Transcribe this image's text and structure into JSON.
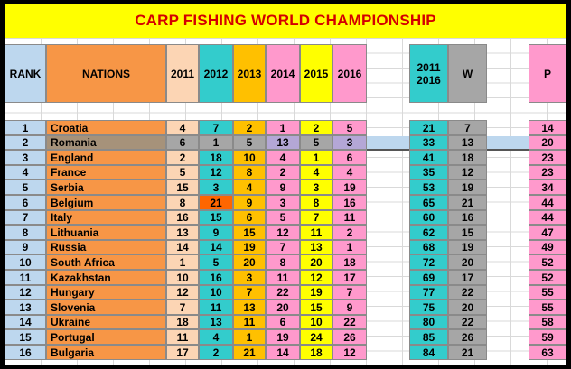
{
  "title": "CARP FISHING WORLD CHAMPIONSHIP",
  "headers": {
    "rank": "RANK",
    "nations": "NATIONS",
    "years": [
      "2011",
      "2012",
      "2013",
      "2014",
      "2015",
      "2016"
    ],
    "total_line1": "2011",
    "total_line2": "2016",
    "w": "W",
    "p": "P"
  },
  "colors": {
    "title_bg": "#ffff00",
    "title_text": "#d40000",
    "rank": "#bdd7ee",
    "nations": "#f79646",
    "y2011": "#fcd5b4",
    "y2012": "#33cccc",
    "y2013": "#ffc000",
    "y2014": "#ff99cc",
    "y2015": "#ffff00",
    "y2016": "#ff99cc",
    "total": "#33cccc",
    "w": "#a6a6a6",
    "p": "#ff99cc",
    "highlight_row": "#a6a6a6",
    "highlight_cell": "#ff6600",
    "bar": "#bdd7ee"
  },
  "rows": [
    {
      "rank": "1",
      "nation": "Croatia",
      "y": [
        "4",
        "7",
        "2",
        "1",
        "2",
        "5"
      ],
      "total": "21",
      "w": "7",
      "p": "14"
    },
    {
      "rank": "2",
      "nation": "Romania",
      "y": [
        "6",
        "1",
        "5",
        "13",
        "5",
        "3"
      ],
      "total": "33",
      "w": "13",
      "p": "20"
    },
    {
      "rank": "3",
      "nation": "England",
      "y": [
        "2",
        "18",
        "10",
        "4",
        "1",
        "6"
      ],
      "total": "41",
      "w": "18",
      "p": "23"
    },
    {
      "rank": "4",
      "nation": "France",
      "y": [
        "5",
        "12",
        "8",
        "2",
        "4",
        "4"
      ],
      "total": "35",
      "w": "12",
      "p": "23"
    },
    {
      "rank": "5",
      "nation": "Serbia",
      "y": [
        "15",
        "3",
        "4",
        "9",
        "3",
        "19"
      ],
      "total": "53",
      "w": "19",
      "p": "34"
    },
    {
      "rank": "6",
      "nation": "Belgium",
      "y": [
        "8",
        "21",
        "9",
        "3",
        "8",
        "16"
      ],
      "total": "65",
      "w": "21",
      "p": "44"
    },
    {
      "rank": "7",
      "nation": "Italy",
      "y": [
        "16",
        "15",
        "6",
        "5",
        "7",
        "11"
      ],
      "total": "60",
      "w": "16",
      "p": "44"
    },
    {
      "rank": "8",
      "nation": "Lithuania",
      "y": [
        "13",
        "9",
        "15",
        "12",
        "11",
        "2"
      ],
      "total": "62",
      "w": "15",
      "p": "47"
    },
    {
      "rank": "9",
      "nation": "Russia",
      "y": [
        "14",
        "14",
        "19",
        "7",
        "13",
        "1"
      ],
      "total": "68",
      "w": "19",
      "p": "49"
    },
    {
      "rank": "10",
      "nation": "South Africa",
      "y": [
        "1",
        "5",
        "20",
        "8",
        "20",
        "18"
      ],
      "total": "72",
      "w": "20",
      "p": "52"
    },
    {
      "rank": "11",
      "nation": "Kazakhstan",
      "y": [
        "10",
        "16",
        "3",
        "11",
        "12",
        "17"
      ],
      "total": "69",
      "w": "17",
      "p": "52"
    },
    {
      "rank": "12",
      "nation": "Hungary",
      "y": [
        "12",
        "10",
        "7",
        "22",
        "19",
        "7"
      ],
      "total": "77",
      "w": "22",
      "p": "55"
    },
    {
      "rank": "13",
      "nation": "Slovenia",
      "y": [
        "7",
        "11",
        "13",
        "20",
        "15",
        "9"
      ],
      "total": "75",
      "w": "20",
      "p": "55"
    },
    {
      "rank": "14",
      "nation": "Ukraine",
      "y": [
        "18",
        "13",
        "11",
        "6",
        "10",
        "22"
      ],
      "total": "80",
      "w": "22",
      "p": "58"
    },
    {
      "rank": "15",
      "nation": "Portugal",
      "y": [
        "11",
        "4",
        "1",
        "19",
        "24",
        "26"
      ],
      "total": "85",
      "w": "26",
      "p": "59"
    },
    {
      "rank": "16",
      "nation": "Bulgaria",
      "y": [
        "17",
        "2",
        "21",
        "14",
        "18",
        "12"
      ],
      "total": "84",
      "w": "21",
      "p": "63"
    }
  ]
}
